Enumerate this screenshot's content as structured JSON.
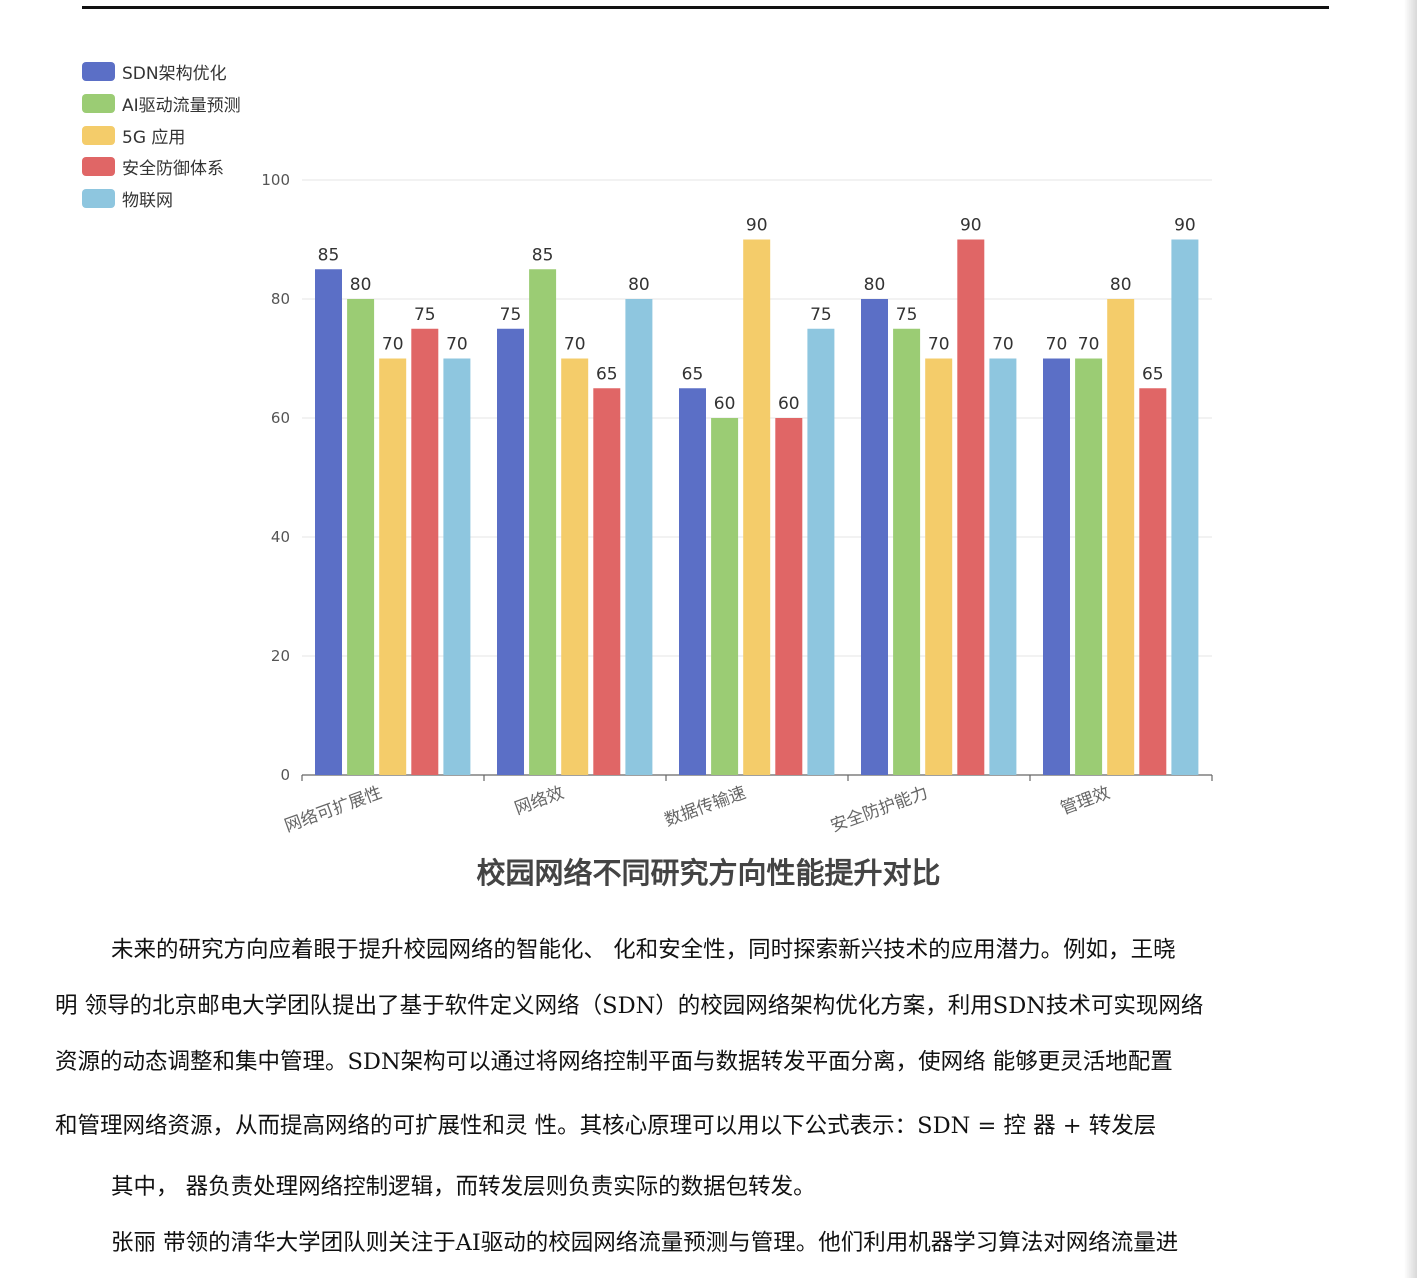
{
  "chart_data": {
    "type": "bar",
    "title": "校园网络不同研究方向性能提升对比",
    "categories": [
      "网络可扩展性",
      "网络效",
      "数据传输速",
      "安全防护能力",
      "管理效"
    ],
    "ylim": [
      0,
      100
    ],
    "yticks": [
      0,
      20,
      40,
      60,
      80,
      100
    ],
    "grid": true,
    "legend_position": "top-left",
    "series": [
      {
        "name": "SDN架构优化",
        "color": "#5b6fc6",
        "values": [
          85,
          75,
          65,
          80,
          70
        ]
      },
      {
        "name": "AI驱动流量预测",
        "color": "#9bcc74",
        "values": [
          80,
          85,
          60,
          75,
          70
        ]
      },
      {
        "name": "5G  应用",
        "color": "#f4cc6a",
        "values": [
          70,
          70,
          90,
          70,
          80
        ]
      },
      {
        "name": "安全防御体系",
        "color": "#e06666",
        "values": [
          75,
          65,
          60,
          90,
          65
        ]
      },
      {
        "name": "物联网",
        "color": "#8ec6df",
        "values": [
          70,
          80,
          75,
          70,
          90
        ]
      }
    ]
  },
  "paragraphs": [
    "未来的研究方向应着眼于提升校园网络的智能化、    化和安全性，同时探索新兴技术的应用潜力。例如，王晓",
    "明    领导的北京邮电大学团队提出了基于软件定义网络（SDN）的校园网络架构优化方案，利用SDN技术可实现网络",
    "资源的动态调整和集中管理。SDN架构可以通过将网络控制平面与数据转发平面分离，使网络    能够更灵活地配置",
    "和管理网络资源，从而提高网络的可扩展性和灵  性。其核心原理可以用以下公式表示：SDN = 控    器 + 转发层",
    "其中，    器负责处理网络控制逻辑，而转发层则负责实际的数据包转发。",
    "张丽    带领的清华大学团队则关注于AI驱动的校园网络流量预测与管理。他们利用机器学习算法对网络流量进"
  ]
}
